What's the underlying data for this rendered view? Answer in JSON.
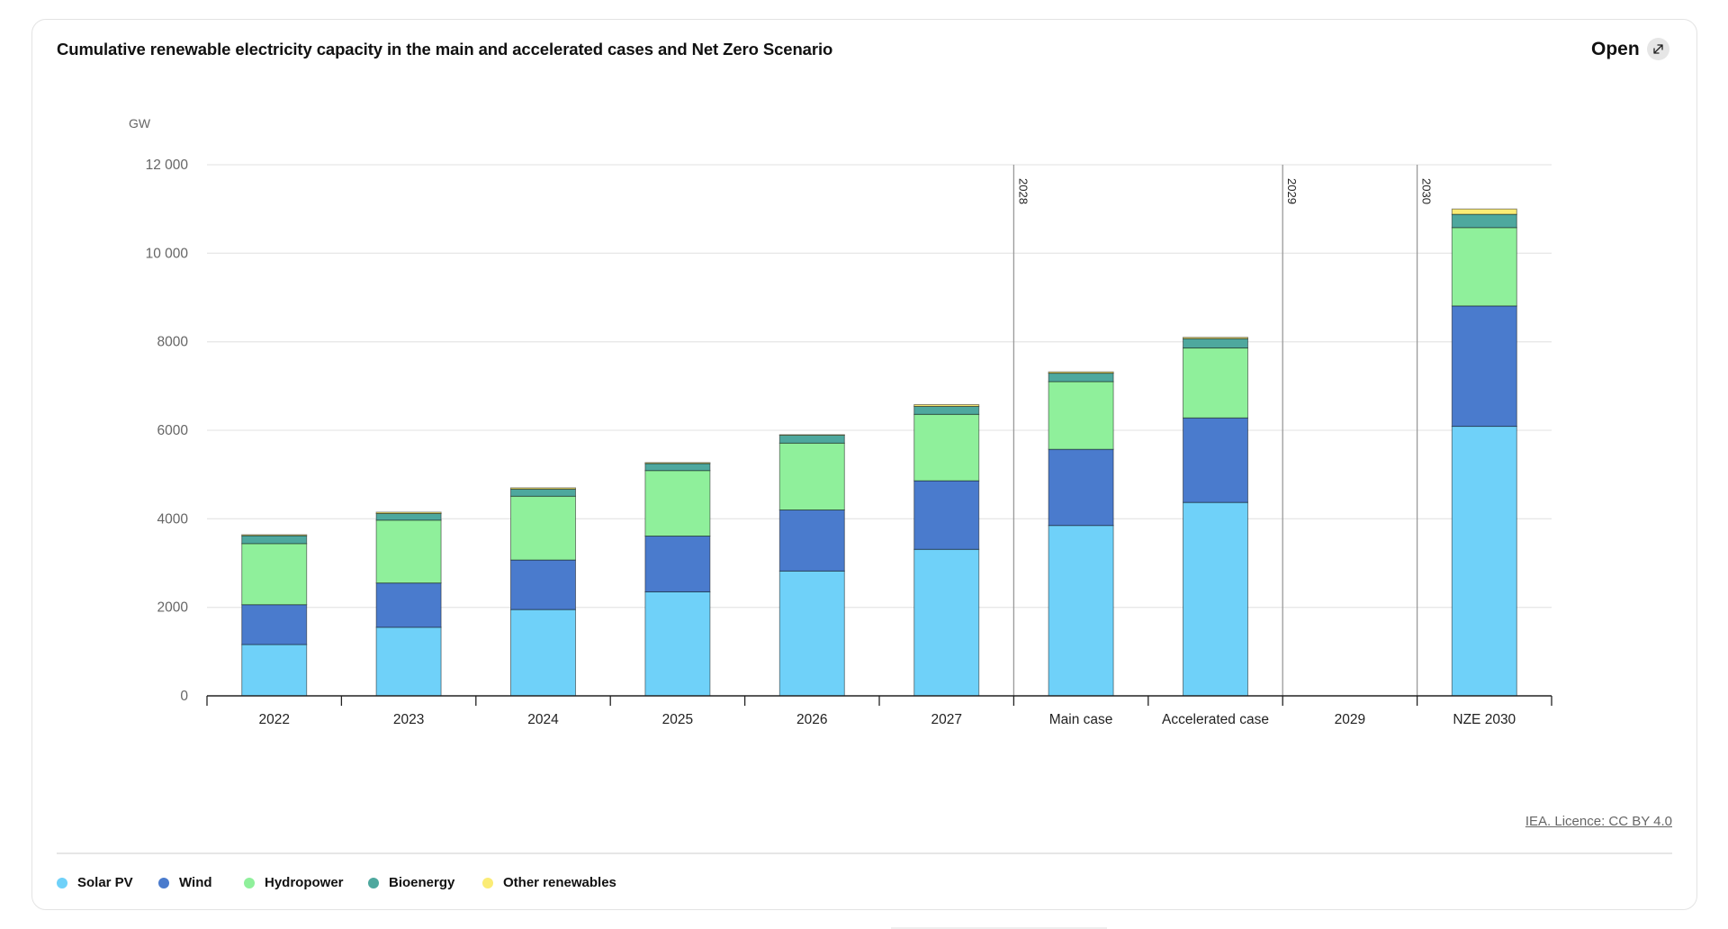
{
  "card": {
    "title": "Cumulative renewable electricity capacity in the main and accelerated cases and Net Zero Scenario",
    "open_label": "Open",
    "open_icon": "expand-arrows-icon",
    "license_label": "IEA. Licence: CC BY 4.0"
  },
  "chart_data": {
    "type": "bar",
    "stacked": true,
    "title": "Cumulative renewable electricity capacity in the main and accelerated cases and Net Zero Scenario",
    "xlabel": "",
    "ylabel": "GW",
    "ylim": [
      0,
      12000
    ],
    "yticks": [
      0,
      2000,
      4000,
      6000,
      8000,
      10000,
      12000
    ],
    "ytick_labels": [
      "0",
      "2000",
      "4000",
      "6000",
      "8000",
      "10 000",
      "12 000"
    ],
    "grid": true,
    "legend_position": "bottom-left",
    "categories": [
      "2022",
      "2023",
      "2024",
      "2025",
      "2026",
      "2027",
      "Main case",
      "Accelerated case",
      "2029",
      "NZE 2030"
    ],
    "group_separators": [
      {
        "before_category": "Main case",
        "label": "2028"
      },
      {
        "before_category": "2029",
        "label": "2029"
      },
      {
        "before_category": "NZE 2030",
        "label": "2030"
      }
    ],
    "series": [
      {
        "name": "Solar PV",
        "color": "#6fd1f9",
        "values": [
          1160,
          1550,
          1950,
          2350,
          2820,
          3310,
          3850,
          4370,
          null,
          6090
        ]
      },
      {
        "name": "Wind",
        "color": "#4a7bcd",
        "values": [
          900,
          1000,
          1120,
          1260,
          1380,
          1550,
          1720,
          1910,
          null,
          2720
        ]
      },
      {
        "name": "Hydropower",
        "color": "#8ff09b",
        "values": [
          1380,
          1420,
          1440,
          1480,
          1510,
          1500,
          1530,
          1580,
          null,
          1770
        ]
      },
      {
        "name": "Bioenergy",
        "color": "#4ea89e",
        "values": [
          180,
          150,
          160,
          160,
          180,
          180,
          190,
          210,
          null,
          300
        ]
      },
      {
        "name": "Other renewables",
        "color": "#fbec75",
        "values": [
          20,
          30,
          30,
          20,
          10,
          40,
          30,
          30,
          null,
          120
        ]
      }
    ]
  }
}
